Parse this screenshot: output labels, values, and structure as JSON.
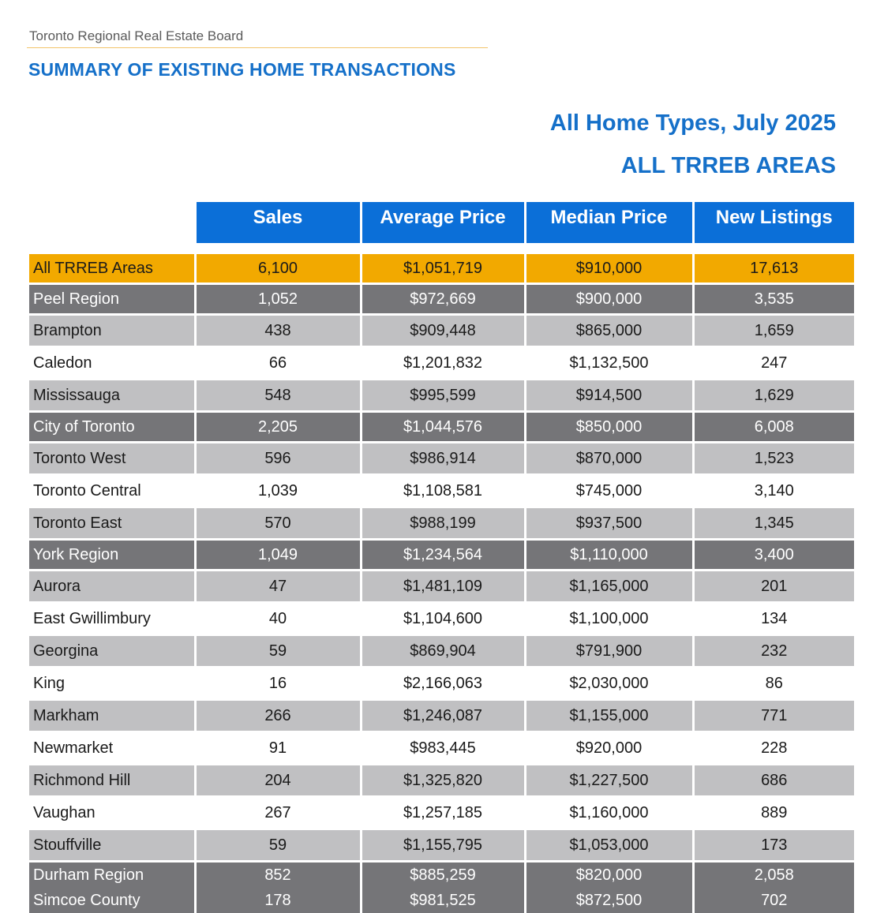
{
  "header": {
    "organization": "Toronto Regional Real Estate Board",
    "report_title": "SUMMARY OF EXISTING HOME TRANSACTIONS",
    "subtitle_period": "All Home Types, July 2025",
    "subtitle_area": "ALL TRREB AREAS"
  },
  "table": {
    "columns": [
      "Sales",
      "Average Price",
      "Median Price",
      "New Listings"
    ],
    "rows": [
      {
        "area": "All TRREB Areas",
        "type": "total",
        "sales": "6,100",
        "avg": "$1,051,719",
        "median": "$910,000",
        "listings": "17,613"
      },
      {
        "area": "Peel Region",
        "type": "region",
        "sales": "1,052",
        "avg": "$972,669",
        "median": "$900,000",
        "listings": "3,535"
      },
      {
        "area": "Brampton",
        "type": "muni",
        "sales": "438",
        "avg": "$909,448",
        "median": "$865,000",
        "listings": "1,659"
      },
      {
        "area": "Caledon",
        "type": "plain",
        "sales": "66",
        "avg": "$1,201,832",
        "median": "$1,132,500",
        "listings": "247"
      },
      {
        "area": "Mississauga",
        "type": "muni",
        "sales": "548",
        "avg": "$995,599",
        "median": "$914,500",
        "listings": "1,629"
      },
      {
        "area": "City of Toronto",
        "type": "region",
        "sales": "2,205",
        "avg": "$1,044,576",
        "median": "$850,000",
        "listings": "6,008"
      },
      {
        "area": "Toronto West",
        "type": "muni",
        "sales": "596",
        "avg": "$986,914",
        "median": "$870,000",
        "listings": "1,523"
      },
      {
        "area": "Toronto Central",
        "type": "plain",
        "sales": "1,039",
        "avg": "$1,108,581",
        "median": "$745,000",
        "listings": "3,140"
      },
      {
        "area": "Toronto East",
        "type": "muni",
        "sales": "570",
        "avg": "$988,199",
        "median": "$937,500",
        "listings": "1,345"
      },
      {
        "area": "York Region",
        "type": "region",
        "sales": "1,049",
        "avg": "$1,234,564",
        "median": "$1,110,000",
        "listings": "3,400"
      },
      {
        "area": "Aurora",
        "type": "muni",
        "sales": "47",
        "avg": "$1,481,109",
        "median": "$1,165,000",
        "listings": "201"
      },
      {
        "area": "East Gwillimbury",
        "type": "plain",
        "sales": "40",
        "avg": "$1,104,600",
        "median": "$1,100,000",
        "listings": "134"
      },
      {
        "area": "Georgina",
        "type": "muni",
        "sales": "59",
        "avg": "$869,904",
        "median": "$791,900",
        "listings": "232"
      },
      {
        "area": "King",
        "type": "plain",
        "sales": "16",
        "avg": "$2,166,063",
        "median": "$2,030,000",
        "listings": "86"
      },
      {
        "area": "Markham",
        "type": "muni",
        "sales": "266",
        "avg": "$1,246,087",
        "median": "$1,155,000",
        "listings": "771"
      },
      {
        "area": "Newmarket",
        "type": "plain",
        "sales": "91",
        "avg": "$983,445",
        "median": "$920,000",
        "listings": "228"
      },
      {
        "area": "Richmond Hill",
        "type": "muni",
        "sales": "204",
        "avg": "$1,325,820",
        "median": "$1,227,500",
        "listings": "686"
      },
      {
        "area": "Vaughan",
        "type": "plain",
        "sales": "267",
        "avg": "$1,257,185",
        "median": "$1,160,000",
        "listings": "889"
      },
      {
        "area": "Stouffville",
        "type": "muni",
        "sales": "59",
        "avg": "$1,155,795",
        "median": "$1,053,000",
        "listings": "173"
      },
      {
        "area": "Durham Region",
        "type": "region-sm",
        "sales": "852",
        "avg": "$885,259",
        "median": "$820,000",
        "listings": "2,058"
      },
      {
        "area": "Simcoe County",
        "type": "region-sm",
        "sales": "178",
        "avg": "$981,525",
        "median": "$872,500",
        "listings": "702"
      }
    ]
  },
  "colors": {
    "title_blue": "#1570c9",
    "header_blue": "#0b6fd8",
    "total_gold": "#f2a900",
    "region_gray": "#757578",
    "muni_gray": "#c0c0c2"
  }
}
